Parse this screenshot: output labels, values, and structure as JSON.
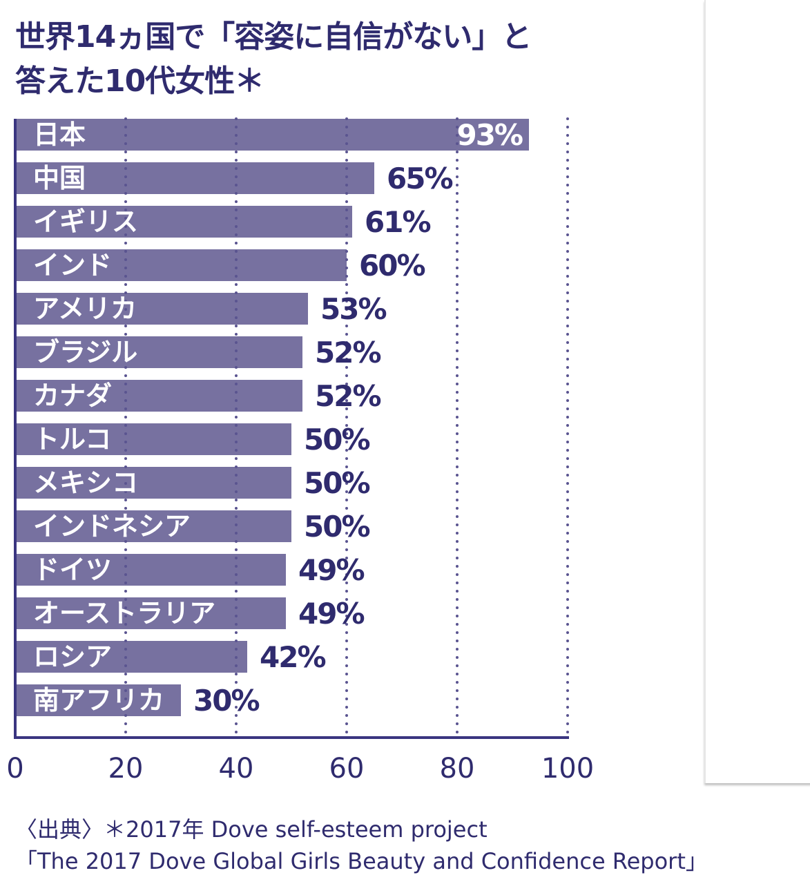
{
  "title_line1": "世界14ヵ国で「容姿に自信がない」と",
  "title_line2": "答えた10代女性＊",
  "source_line1": "〈出典〉＊2017年 Dove self-esteem project",
  "source_line2": "「The 2017 Dove Global Girls Beauty and Confidence Report」",
  "colors": {
    "bar": "#7771a0",
    "text": "#2f2b6e",
    "axis": "#3a3580",
    "grid": "#5a5490"
  },
  "chart_data": {
    "type": "bar",
    "orientation": "horizontal",
    "title": "世界14ヵ国で「容姿に自信がない」と答えた10代女性＊",
    "categories": [
      "日本",
      "中国",
      "イギリス",
      "インド",
      "アメリカ",
      "ブラジル",
      "カナダ",
      "トルコ",
      "メキシコ",
      "インドネシア",
      "ドイツ",
      "オーストラリア",
      "ロシア",
      "南アフリカ"
    ],
    "values": [
      93,
      65,
      61,
      60,
      53,
      52,
      52,
      50,
      50,
      50,
      49,
      49,
      42,
      30
    ],
    "value_labels": [
      "93%",
      "65%",
      "61%",
      "60%",
      "53%",
      "52%",
      "52%",
      "50%",
      "50%",
      "50%",
      "49%",
      "49%",
      "42%",
      "30%"
    ],
    "xlim": [
      0,
      100
    ],
    "xticks": [
      "0",
      "20",
      "40",
      "60",
      "80",
      "100"
    ],
    "grid": "dotted vertical",
    "xlabel": "",
    "ylabel": ""
  }
}
